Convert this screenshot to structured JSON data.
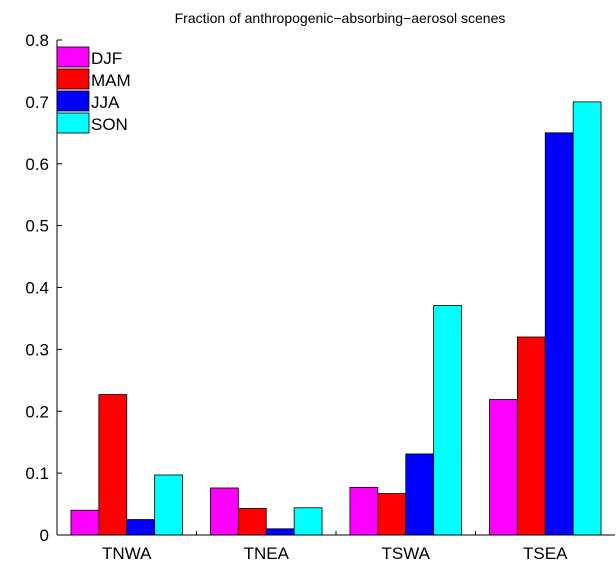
{
  "chart_data": {
    "type": "bar",
    "title": "Fraction of anthropogenic−absorbing−aerosol scenes",
    "xlabel": "",
    "ylabel": "",
    "categories": [
      "TNWA",
      "TNEA",
      "TSWA",
      "TSEA"
    ],
    "ylim": [
      0,
      0.8
    ],
    "yticks": [
      "0",
      "0.1",
      "0.2",
      "0.3",
      "0.4",
      "0.5",
      "0.6",
      "0.7",
      "0.8"
    ],
    "grid": false,
    "legend_position": "top-left",
    "series": [
      {
        "name": "DJF",
        "color": "#ff00ff",
        "values": [
          0.04,
          0.076,
          0.077,
          0.219
        ]
      },
      {
        "name": "MAM",
        "color": "#ff0000",
        "values": [
          0.227,
          0.043,
          0.067,
          0.32
        ]
      },
      {
        "name": "JJA",
        "color": "#0000ff",
        "values": [
          0.025,
          0.01,
          0.131,
          0.65
        ]
      },
      {
        "name": "SON",
        "color": "#00ffff",
        "values": [
          0.097,
          0.044,
          0.371,
          0.7
        ]
      }
    ]
  }
}
